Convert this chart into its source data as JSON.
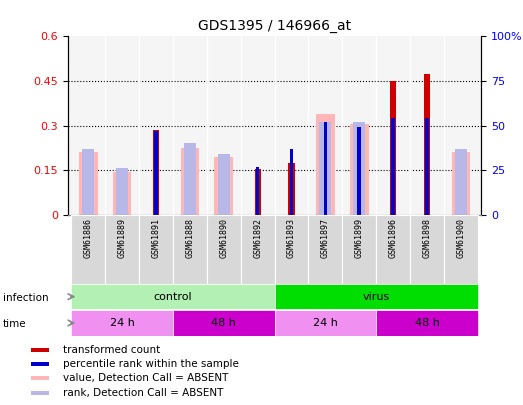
{
  "title": "GDS1395 / 146966_at",
  "samples": [
    "GSM61886",
    "GSM61889",
    "GSM61891",
    "GSM61888",
    "GSM61890",
    "GSM61892",
    "GSM61893",
    "GSM61897",
    "GSM61899",
    "GSM61896",
    "GSM61898",
    "GSM61900"
  ],
  "transformed_count": [
    0.0,
    0.0,
    0.285,
    0.0,
    0.0,
    0.155,
    0.175,
    0.0,
    0.0,
    0.45,
    0.475,
    0.0
  ],
  "percentile_rank_pct": [
    0.0,
    0.0,
    47.0,
    0.0,
    0.0,
    27.0,
    37.0,
    52.0,
    49.0,
    54.0,
    54.0,
    0.0
  ],
  "absent_value": [
    0.21,
    0.145,
    0.0,
    0.225,
    0.195,
    0.0,
    0.0,
    0.34,
    0.305,
    0.0,
    0.0,
    0.21
  ],
  "absent_rank_pct": [
    37.0,
    26.0,
    0.0,
    40.0,
    34.0,
    0.0,
    0.0,
    52.0,
    52.0,
    0.0,
    0.0,
    37.0
  ],
  "infection_groups": [
    {
      "label": "control",
      "start": 0,
      "end": 6,
      "color": "#b3f0b3"
    },
    {
      "label": "virus",
      "start": 6,
      "end": 12,
      "color": "#00dd00"
    }
  ],
  "time_groups": [
    {
      "label": "24 h",
      "start": 0,
      "end": 3,
      "color": "#f090f0"
    },
    {
      "label": "48 h",
      "start": 3,
      "end": 6,
      "color": "#cc00cc"
    },
    {
      "label": "24 h",
      "start": 6,
      "end": 9,
      "color": "#f090f0"
    },
    {
      "label": "48 h",
      "start": 9,
      "end": 12,
      "color": "#cc00cc"
    }
  ],
  "ylim_left": [
    0,
    0.6
  ],
  "ylim_right": [
    0,
    100
  ],
  "yticks_left": [
    0,
    0.15,
    0.3,
    0.45,
    0.6
  ],
  "yticks_right": [
    0,
    25,
    50,
    75,
    100
  ],
  "red_color": "#cc0000",
  "blue_color": "#0000cc",
  "pink_color": "#ffb6b6",
  "lightblue_color": "#b8b8e8",
  "chart_bg": "#f5f5f5",
  "legend_items": [
    {
      "color": "#cc0000",
      "label": "transformed count"
    },
    {
      "color": "#0000cc",
      "label": "percentile rank within the sample"
    },
    {
      "color": "#ffb6b6",
      "label": "value, Detection Call = ABSENT"
    },
    {
      "color": "#b8b8e8",
      "label": "rank, Detection Call = ABSENT"
    }
  ]
}
